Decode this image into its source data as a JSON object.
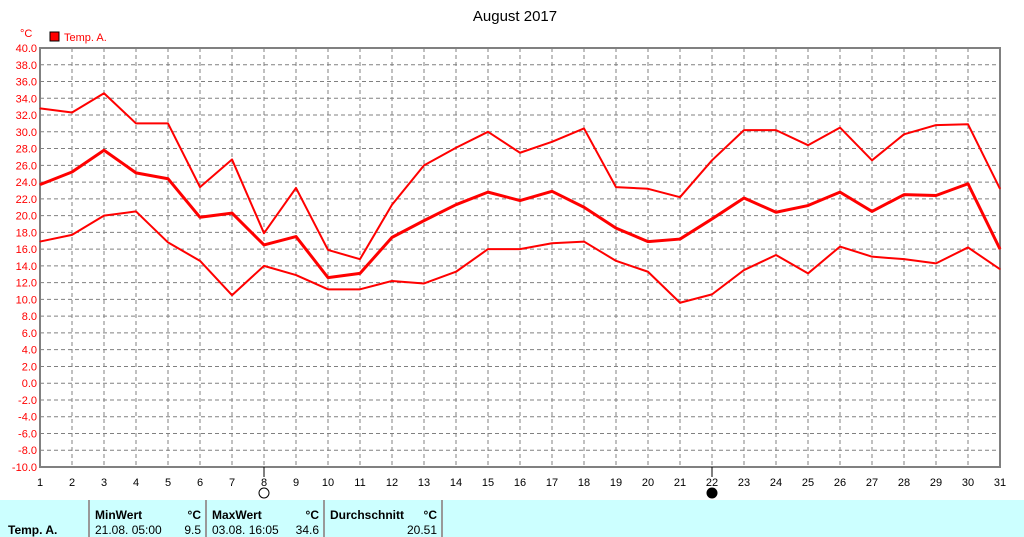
{
  "chart_data": {
    "type": "line",
    "title": "August 2017",
    "ylabel": "°C",
    "legend": {
      "label": "Temp. A.",
      "color": "#ff0000",
      "placement": "top-left"
    },
    "ylim": [
      -10,
      40
    ],
    "yticks": [
      "40.0",
      "38.0",
      "36.0",
      "34.0",
      "32.0",
      "30.0",
      "28.0",
      "26.0",
      "24.0",
      "22.0",
      "20.0",
      "18.0",
      "16.0",
      "14.0",
      "12.0",
      "10.0",
      "8.0",
      "6.0",
      "4.0",
      "2.0",
      "0.0",
      "-2.0",
      "-4.0",
      "-6.0",
      "-8.0",
      "-10.0"
    ],
    "x": [
      1,
      2,
      3,
      4,
      5,
      6,
      7,
      8,
      9,
      10,
      11,
      12,
      13,
      14,
      15,
      16,
      17,
      18,
      19,
      20,
      21,
      22,
      23,
      24,
      25,
      26,
      27,
      28,
      29,
      30,
      31
    ],
    "grid": true,
    "series": [
      {
        "role": "max",
        "values": [
          32.8,
          32.3,
          34.6,
          31.0,
          31.0,
          23.4,
          26.7,
          17.9,
          23.3,
          15.9,
          14.8,
          21.3,
          26.0,
          28.1,
          30.0,
          27.5,
          28.8,
          30.4,
          23.4,
          23.2,
          22.2,
          26.6,
          30.2,
          30.2,
          28.4,
          30.5,
          26.6,
          29.7,
          30.8,
          30.9,
          23.2
        ]
      },
      {
        "role": "avg",
        "values": [
          23.7,
          25.2,
          27.8,
          25.1,
          24.4,
          19.8,
          20.3,
          16.5,
          17.5,
          12.6,
          13.1,
          17.4,
          19.4,
          21.3,
          22.8,
          21.8,
          22.9,
          21.0,
          18.5,
          16.9,
          17.2,
          19.6,
          22.1,
          20.4,
          21.2,
          22.8,
          20.5,
          22.5,
          22.4,
          23.8,
          16.0
        ]
      },
      {
        "role": "min",
        "values": [
          16.9,
          17.7,
          20.0,
          20.5,
          16.8,
          14.6,
          10.5,
          14.0,
          12.9,
          11.2,
          11.2,
          12.2,
          11.9,
          13.3,
          16.0,
          16.0,
          16.7,
          16.9,
          14.6,
          13.3,
          9.6,
          10.6,
          13.5,
          15.3,
          13.1,
          16.3,
          15.1,
          14.8,
          14.3,
          16.2,
          13.6
        ]
      }
    ],
    "moon_phases": [
      {
        "day": 8,
        "phase": "full-moon"
      },
      {
        "day": 22,
        "phase": "new-moon"
      }
    ],
    "colors": {
      "line": "#ff0000",
      "grid": "#808080",
      "panel": "#ccffff"
    }
  },
  "summary": {
    "row_label": "Temp. A.",
    "min": {
      "header": "MinWert",
      "unit": "°C",
      "datetime": "21.08.  05:00",
      "value": "9.5"
    },
    "max": {
      "header": "MaxWert",
      "unit": "°C",
      "datetime": "03.08.  16:05",
      "value": "34.6"
    },
    "avg": {
      "header": "Durchschnitt",
      "unit": "°C",
      "value": "20.51"
    }
  }
}
